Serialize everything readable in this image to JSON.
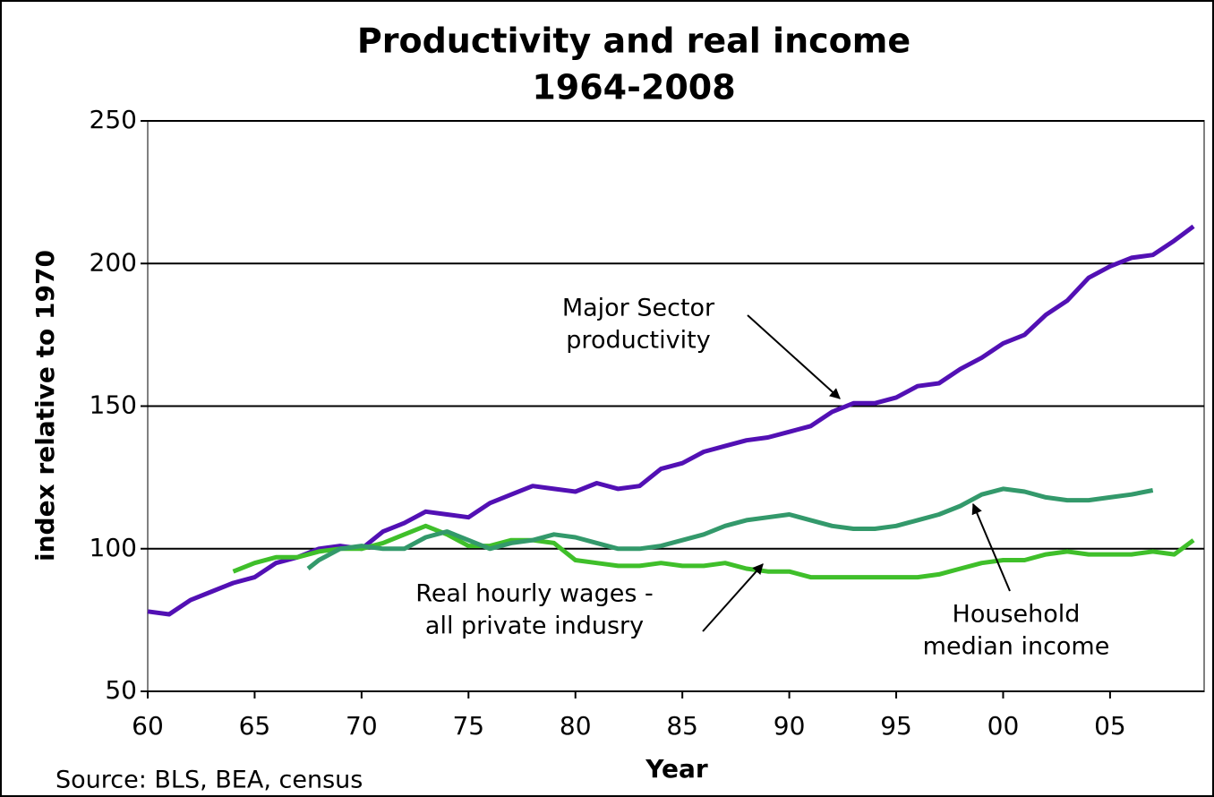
{
  "chart_data": {
    "type": "line",
    "title": "Productivity and real income",
    "subtitle": "1964-2008",
    "xlabel": "Year",
    "ylabel": "index relative to 1970",
    "source": "Source: BLS, BEA, census",
    "xlim": [
      1960,
      2009.4
    ],
    "ylim": [
      50,
      250
    ],
    "xticks": [
      {
        "value": 1960,
        "label": "60"
      },
      {
        "value": 1965,
        "label": "65"
      },
      {
        "value": 1970,
        "label": "70"
      },
      {
        "value": 1975,
        "label": "75"
      },
      {
        "value": 1980,
        "label": "80"
      },
      {
        "value": 1985,
        "label": "85"
      },
      {
        "value": 1990,
        "label": "90"
      },
      {
        "value": 1995,
        "label": "95"
      },
      {
        "value": 2000,
        "label": "00"
      },
      {
        "value": 2005,
        "label": "05"
      }
    ],
    "yticks": [
      50,
      100,
      150,
      200,
      250
    ],
    "grid": true,
    "series": [
      {
        "name": "Major Sector productivity",
        "color": "#5210b4",
        "x": [
          1960,
          1961,
          1962,
          1963,
          1964,
          1965,
          1966,
          1967,
          1968,
          1969,
          1970,
          1971,
          1972,
          1973,
          1974,
          1975,
          1976,
          1977,
          1978,
          1979,
          1980,
          1981,
          1982,
          1983,
          1984,
          1985,
          1986,
          1987,
          1988,
          1989,
          1990,
          1991,
          1992,
          1993,
          1994,
          1995,
          1996,
          1997,
          1998,
          1999,
          2000,
          2001,
          2002,
          2003,
          2004,
          2005,
          2006,
          2007,
          2008,
          2008.9
        ],
        "values": [
          78,
          77,
          82,
          85,
          88,
          90,
          95,
          97,
          100,
          101,
          100,
          106,
          109,
          113,
          112,
          111,
          116,
          119,
          122,
          121,
          120,
          123,
          121,
          122,
          128,
          130,
          134,
          136,
          138,
          139,
          141,
          143,
          148,
          151,
          151,
          153,
          157,
          158,
          163,
          167,
          172,
          175,
          182,
          187,
          195,
          199,
          202,
          203,
          208,
          213
        ]
      },
      {
        "name": "Real hourly wages - all private indusry",
        "color": "#3fbf2a",
        "x": [
          1964,
          1965,
          1966,
          1967,
          1968,
          1969,
          1970,
          1971,
          1972,
          1973,
          1974,
          1975,
          1976,
          1977,
          1978,
          1979,
          1980,
          1981,
          1982,
          1983,
          1984,
          1985,
          1986,
          1987,
          1988,
          1989,
          1990,
          1991,
          1992,
          1993,
          1994,
          1995,
          1996,
          1997,
          1998,
          1999,
          2000,
          2001,
          2002,
          2003,
          2004,
          2005,
          2006,
          2007,
          2008,
          2008.9
        ],
        "values": [
          92,
          95,
          97,
          97,
          99,
          100,
          100,
          102,
          105,
          108,
          105,
          101,
          101,
          103,
          103,
          102,
          96,
          95,
          94,
          94,
          95,
          94,
          94,
          95,
          93,
          92,
          92,
          90,
          90,
          90,
          90,
          90,
          90,
          91,
          93,
          95,
          96,
          96,
          98,
          99,
          98,
          98,
          98,
          99,
          98,
          103
        ]
      },
      {
        "name": "Household median income",
        "color": "#33996b",
        "x": [
          1967.5,
          1968,
          1969,
          1970,
          1971,
          1972,
          1973,
          1974,
          1975,
          1976,
          1977,
          1978,
          1979,
          1980,
          1981,
          1982,
          1983,
          1984,
          1985,
          1986,
          1987,
          1988,
          1989,
          1990,
          1991,
          1992,
          1993,
          1994,
          1995,
          1996,
          1997,
          1998,
          1999,
          2000,
          2001,
          2002,
          2003,
          2004,
          2005,
          2006,
          2007
        ],
        "values": [
          93,
          96,
          100,
          101,
          100,
          100,
          104,
          106,
          103,
          100,
          102,
          103,
          105,
          104,
          102,
          100,
          100,
          101,
          103,
          105,
          108,
          110,
          111,
          112,
          110,
          108,
          107,
          107,
          108,
          110,
          112,
          115,
          119,
          121,
          120,
          118,
          117,
          117,
          118,
          119,
          120.5
        ]
      }
    ],
    "annotations": [
      {
        "text": [
          "Major Sector",
          "productivity"
        ]
      },
      {
        "text": [
          "Real hourly wages -",
          "all private indusry"
        ]
      },
      {
        "text": [
          "Household",
          "median income"
        ]
      }
    ]
  }
}
